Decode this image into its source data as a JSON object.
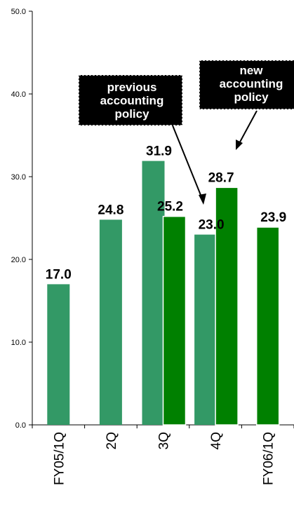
{
  "chart_data": {
    "type": "bar",
    "categories": [
      "FY05/1Q",
      "2Q",
      "3Q",
      "4Q",
      "FY06/1Q"
    ],
    "series": [
      {
        "name": "previous accounting policy",
        "color": "#339966",
        "values": [
          17.0,
          24.8,
          31.9,
          23.0,
          null
        ]
      },
      {
        "name": "new accounting policy",
        "color": "#008000",
        "values": [
          null,
          null,
          25.2,
          28.7,
          23.9
        ]
      }
    ],
    "data_labels": [
      "17.0",
      "24.8",
      "31.9",
      "25.2",
      "23.0",
      "28.7",
      "23.9"
    ],
    "ylim": [
      0,
      50
    ],
    "yticks": [
      "0.0",
      "10.0",
      "20.0",
      "30.0",
      "40.0",
      "50.0"
    ],
    "ytick_values": [
      0,
      10,
      20,
      30,
      40,
      50
    ],
    "grid": false,
    "xlabel": "",
    "ylabel": "",
    "annotations": [
      {
        "lines": [
          "previous",
          "accounting",
          "policy"
        ]
      },
      {
        "lines": [
          "new",
          "accounting",
          "policy"
        ]
      }
    ]
  }
}
